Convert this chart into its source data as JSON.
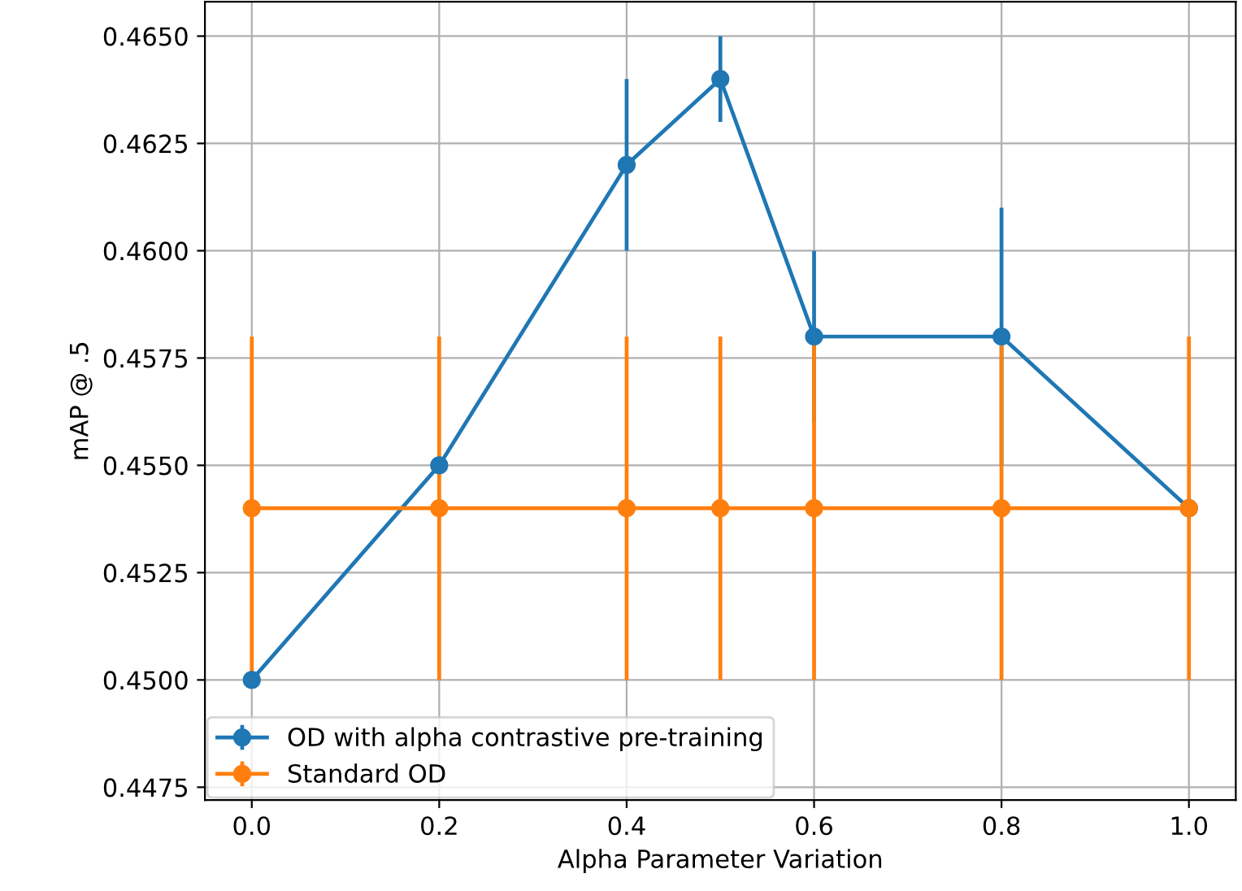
{
  "chart_data": {
    "type": "line",
    "xlabel": "Alpha Parameter Variation",
    "ylabel": "mAP @ .5",
    "x": [
      0.0,
      0.2,
      0.4,
      0.5,
      0.6,
      0.8,
      1.0
    ],
    "series": [
      {
        "name": "OD with alpha contrastive pre-training",
        "color": "#1f77b4",
        "values": [
          0.45,
          0.455,
          0.462,
          0.464,
          0.458,
          0.458,
          0.454
        ],
        "errors": [
          null,
          null,
          0.002,
          0.001,
          0.002,
          0.003,
          null
        ]
      },
      {
        "name": "Standard OD",
        "color": "#ff7f0e",
        "values": [
          0.454,
          0.454,
          0.454,
          0.454,
          0.454,
          0.454,
          0.454
        ],
        "errors": [
          0.004,
          0.004,
          0.004,
          0.004,
          0.004,
          0.004,
          0.004
        ]
      }
    ],
    "xlim": [
      -0.05,
      1.05
    ],
    "xticks": [
      {
        "value": 0.0,
        "label": "0.0"
      },
      {
        "value": 0.2,
        "label": "0.2"
      },
      {
        "value": 0.4,
        "label": "0.4"
      },
      {
        "value": 0.6,
        "label": "0.6"
      },
      {
        "value": 0.8,
        "label": "0.8"
      },
      {
        "value": 1.0,
        "label": "1.0"
      }
    ],
    "ylim": [
      0.4472,
      0.4658
    ],
    "yticks": [
      {
        "value": 0.4475,
        "label": "0.4475"
      },
      {
        "value": 0.45,
        "label": "0.4500"
      },
      {
        "value": 0.4525,
        "label": "0.4525"
      },
      {
        "value": 0.455,
        "label": "0.4550"
      },
      {
        "value": 0.4575,
        "label": "0.4575"
      },
      {
        "value": 0.46,
        "label": "0.4600"
      },
      {
        "value": 0.4625,
        "label": "0.4625"
      },
      {
        "value": 0.465,
        "label": "0.4650"
      }
    ],
    "grid": true,
    "legend": "bottom left",
    "marker": "circle",
    "line_style": "solid"
  }
}
